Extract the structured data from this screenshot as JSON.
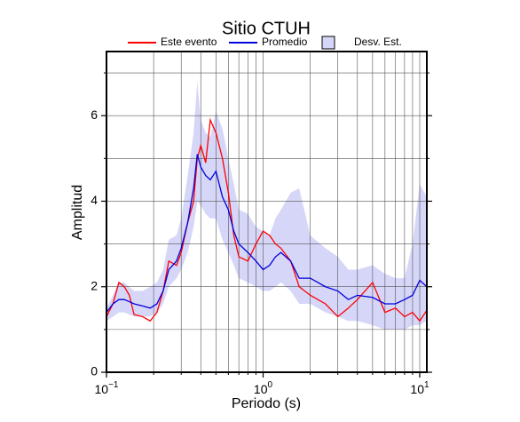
{
  "chart_data": {
    "type": "line",
    "title": "Sitio CTUH",
    "x_label": "Periodo (s)",
    "y_label": "Amplitud",
    "x_scale": "log",
    "grid": true,
    "legend": "top",
    "xlim": [
      0.1,
      11.1
    ],
    "ylim": [
      0,
      7.5
    ],
    "xticks": [
      {
        "value": 0.1,
        "label": "10",
        "exponent": "−1"
      },
      {
        "value": 1,
        "label": "10",
        "exponent": "0"
      },
      {
        "value": 10,
        "label": "10",
        "exponent": "1"
      }
    ],
    "xminor": [
      0.2,
      0.3,
      0.4,
      0.5,
      0.6,
      0.7,
      0.8,
      0.9,
      2,
      3,
      4,
      5,
      6,
      7,
      8,
      9
    ],
    "yticks": [
      0,
      2,
      4,
      6
    ],
    "yminor": [
      1,
      3,
      5,
      7
    ],
    "x": [
      0.1,
      0.11,
      0.12,
      0.13,
      0.14,
      0.15,
      0.17,
      0.19,
      0.21,
      0.23,
      0.25,
      0.28,
      0.3,
      0.33,
      0.36,
      0.38,
      0.4,
      0.43,
      0.46,
      0.5,
      0.55,
      0.6,
      0.65,
      0.7,
      0.8,
      0.9,
      1.0,
      1.1,
      1.2,
      1.3,
      1.5,
      1.7,
      2.0,
      2.5,
      3,
      3.5,
      4,
      5,
      6,
      7,
      8,
      9,
      10,
      11.1
    ],
    "band": {
      "name": "Desv. Est.",
      "color": "#d6d6f8",
      "lower": [
        1.2,
        1.3,
        1.4,
        1.4,
        1.35,
        1.3,
        1.3,
        1.3,
        1.4,
        1.6,
        2.0,
        2.2,
        2.4,
        2.8,
        3.4,
        4.0,
        3.9,
        3.7,
        3.6,
        3.6,
        3.1,
        2.8,
        2.5,
        2.2,
        2.1,
        2.0,
        1.9,
        1.9,
        2.0,
        2.1,
        1.9,
        1.6,
        1.6,
        1.4,
        1.3,
        1.2,
        1.2,
        1.1,
        1.0,
        1.0,
        1.0,
        1.1,
        1.1,
        1.2
      ],
      "upper": [
        1.5,
        1.8,
        2.1,
        2.1,
        2.0,
        1.9,
        1.9,
        2.0,
        2.1,
        2.4,
        3.1,
        3.2,
        3.6,
        4.6,
        5.6,
        6.8,
        5.9,
        5.6,
        5.5,
        6.1,
        5.7,
        5.0,
        4.4,
        3.8,
        3.7,
        3.4,
        3.3,
        3.2,
        3.6,
        3.8,
        4.2,
        4.3,
        3.2,
        2.9,
        2.7,
        2.4,
        2.4,
        2.5,
        2.3,
        2.2,
        2.2,
        3.0,
        4.4,
        4.1
      ]
    },
    "series": [
      {
        "name": "Este evento",
        "color": "#ff0000",
        "values": [
          1.3,
          1.6,
          2.1,
          2.0,
          1.8,
          1.35,
          1.3,
          1.2,
          1.4,
          1.9,
          2.6,
          2.5,
          2.8,
          3.5,
          4.0,
          5.0,
          5.3,
          4.9,
          5.9,
          5.6,
          5.0,
          4.2,
          3.2,
          2.7,
          2.6,
          3.0,
          3.3,
          3.2,
          3.0,
          2.9,
          2.6,
          2.0,
          1.8,
          1.6,
          1.3,
          1.5,
          1.7,
          2.1,
          1.4,
          1.5,
          1.3,
          1.4,
          1.2,
          1.45
        ]
      },
      {
        "name": "Promedio",
        "color": "#0000dd",
        "values": [
          1.4,
          1.6,
          1.7,
          1.7,
          1.65,
          1.6,
          1.55,
          1.5,
          1.6,
          1.9,
          2.4,
          2.6,
          2.9,
          3.5,
          4.3,
          5.1,
          4.8,
          4.6,
          4.5,
          4.7,
          4.1,
          3.8,
          3.3,
          3.0,
          2.8,
          2.6,
          2.4,
          2.5,
          2.7,
          2.8,
          2.6,
          2.2,
          2.2,
          2.0,
          1.9,
          1.7,
          1.8,
          1.75,
          1.6,
          1.6,
          1.7,
          1.8,
          2.15,
          2.0
        ]
      }
    ]
  }
}
